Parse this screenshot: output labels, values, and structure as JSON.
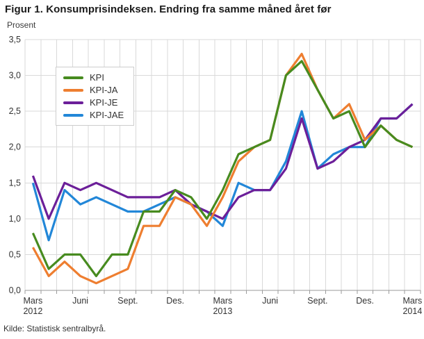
{
  "title": "Figur 1. Konsumprisindeksen. Endring fra samme måned året før",
  "source": "Kilde: Statistisk sentralbyrå.",
  "axis": {
    "y_unit_label": "Prosent",
    "y_tick_labels": [
      "3,5",
      "3,0",
      "2,5",
      "2,0",
      "1,5",
      "1,0",
      "0,5",
      "0,0"
    ],
    "x_tick_labels": [
      {
        "month_index": 0,
        "label": "Mars",
        "year": "2012"
      },
      {
        "month_index": 3,
        "label": "Juni",
        "year": ""
      },
      {
        "month_index": 6,
        "label": "Sept.",
        "year": ""
      },
      {
        "month_index": 9,
        "label": "Des.",
        "year": ""
      },
      {
        "month_index": 12,
        "label": "Mars",
        "year": "2013"
      },
      {
        "month_index": 15,
        "label": "Juni",
        "year": ""
      },
      {
        "month_index": 18,
        "label": "Sept.",
        "year": ""
      },
      {
        "month_index": 21,
        "label": "Des.",
        "year": ""
      },
      {
        "month_index": 24,
        "label": "Mars",
        "year": "2014"
      }
    ]
  },
  "colors": {
    "grid": "#d9d9d9",
    "axis_line": "#9a9a9a",
    "tick_text": "#333333",
    "title_text": "#1a1a1a",
    "background": "#ffffff"
  },
  "chart_data": {
    "type": "line",
    "title": "Figur 1. Konsumprisindeksen. Endring fra samme måned året før",
    "ylabel": "Prosent",
    "x_period": "monthly",
    "x_start": "2012-03",
    "x_end": "2014-03",
    "n_points": 25,
    "ylim": [
      0,
      3.5
    ],
    "ytick_step": 0.5,
    "grid": true,
    "legend_position": "upper-left",
    "series": [
      {
        "name": "KPI",
        "color": "#478b1f",
        "values": [
          0.8,
          0.3,
          0.5,
          0.5,
          0.2,
          0.5,
          0.5,
          1.1,
          1.1,
          1.4,
          1.3,
          1.0,
          1.4,
          1.9,
          2.0,
          2.1,
          3.0,
          3.2,
          2.8,
          2.4,
          2.5,
          2.0,
          2.3,
          2.1,
          2.0
        ]
      },
      {
        "name": "KPI-JA",
        "color": "#ee7e30",
        "values": [
          0.6,
          0.2,
          0.4,
          0.2,
          0.1,
          0.2,
          0.3,
          0.9,
          0.9,
          1.3,
          1.2,
          0.9,
          1.3,
          1.8,
          2.0,
          2.1,
          3.0,
          3.3,
          2.8,
          2.4,
          2.6,
          2.1,
          2.3,
          2.1,
          2.0
        ]
      },
      {
        "name": "KPI-JE",
        "color": "#6c1f99",
        "values": [
          1.6,
          1.0,
          1.5,
          1.4,
          1.5,
          1.4,
          1.3,
          1.3,
          1.3,
          1.4,
          1.2,
          1.1,
          1.0,
          1.3,
          1.4,
          1.4,
          1.7,
          2.4,
          1.7,
          1.8,
          2.0,
          2.1,
          2.4,
          2.4,
          2.6
        ]
      },
      {
        "name": "KPI-JAE",
        "color": "#2287d8",
        "values": [
          1.5,
          0.7,
          1.4,
          1.2,
          1.3,
          1.2,
          1.1,
          1.1,
          1.2,
          1.3,
          1.2,
          1.1,
          0.9,
          1.5,
          1.4,
          1.4,
          1.8,
          2.5,
          1.7,
          1.9,
          2.0,
          2.0,
          2.4,
          2.4,
          2.6
        ]
      }
    ]
  }
}
